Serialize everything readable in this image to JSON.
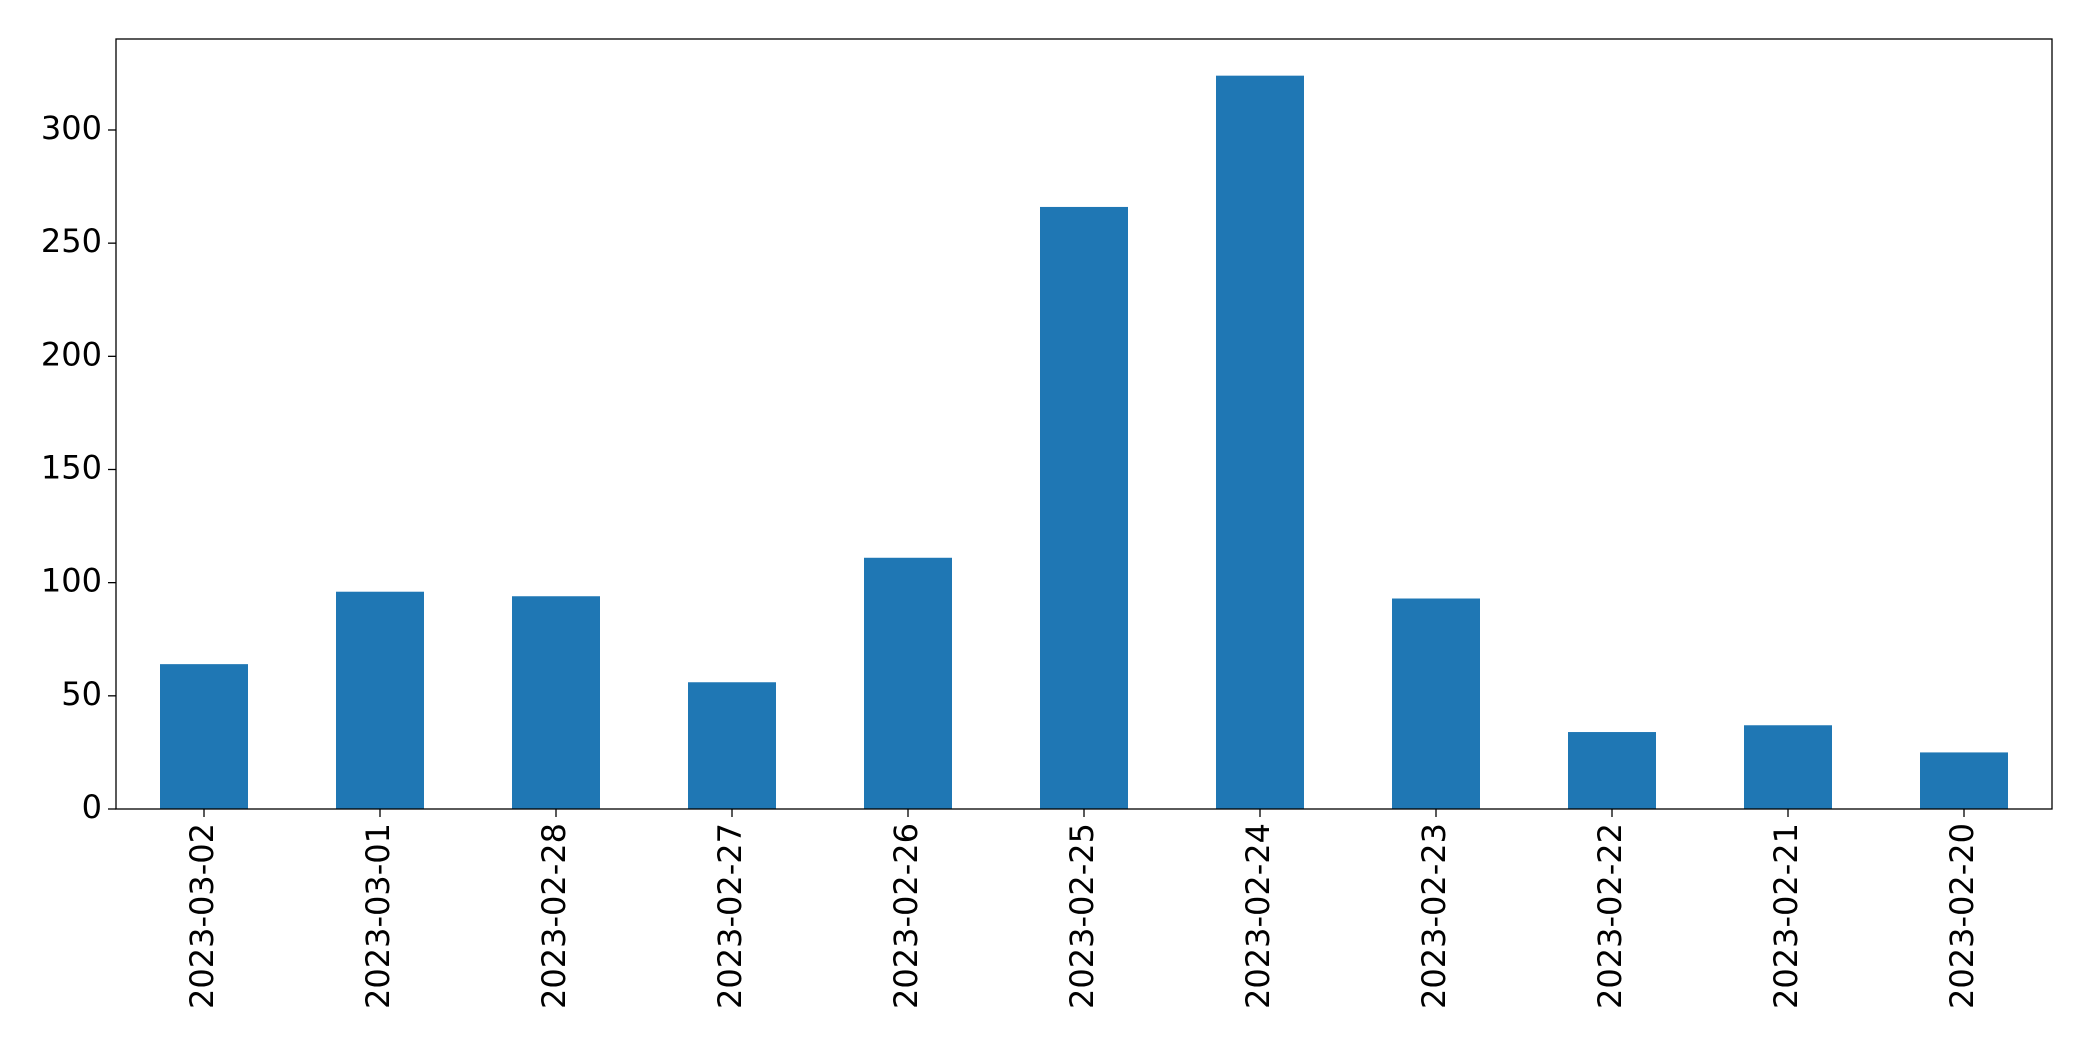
{
  "chart_data": {
    "type": "bar",
    "categories": [
      "2023-03-02",
      "2023-03-01",
      "2023-02-28",
      "2023-02-27",
      "2023-02-26",
      "2023-02-25",
      "2023-02-24",
      "2023-02-23",
      "2023-02-22",
      "2023-02-21",
      "2023-02-20"
    ],
    "values": [
      64,
      96,
      94,
      56,
      111,
      266,
      324,
      93,
      34,
      37,
      25
    ],
    "color": "#1f77b4",
    "ylim": [
      0,
      340.2
    ],
    "yticks": [
      0,
      50,
      100,
      150,
      200,
      250,
      300
    ],
    "grid": false
  }
}
